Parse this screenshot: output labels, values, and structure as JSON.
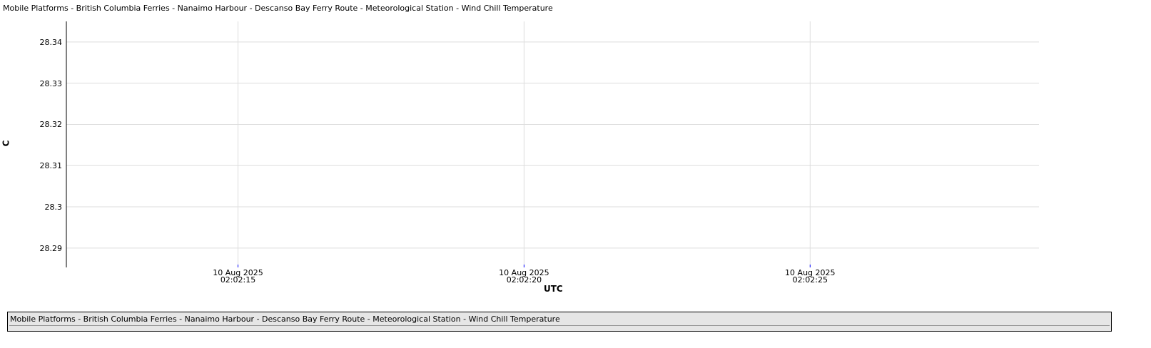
{
  "chart_data": {
    "type": "line",
    "title": "Mobile Platforms - British Columbia Ferries - Nanaimo Harbour - Descanso Bay Ferry Route - Meteorological Station - Wind Chill Temperature",
    "y_label": "C",
    "x_label": "UTC",
    "x": [],
    "series": [
      {
        "name": "Mobile Platforms - British Columbia Ferries - Nanaimo Harbour - Descanso Bay Ferry Route - Meteorological Station - Wind Chill Temperature",
        "values": []
      }
    ],
    "xlim": [
      "2025-08-10T02:02:12",
      "2025-08-10T02:02:29"
    ],
    "xticks": [
      {
        "value": "2025-08-10T02:02:15",
        "label": "10 Aug 2025\n02:02:15"
      },
      {
        "value": "2025-08-10T02:02:20",
        "label": "10 Aug 2025\n02:02:20"
      },
      {
        "value": "2025-08-10T02:02:25",
        "label": "10 Aug 2025\n02:02:25"
      }
    ],
    "ylim": [
      28.2853,
      28.345
    ],
    "yticks": [
      28.29,
      28.3,
      28.31,
      28.32,
      28.33,
      28.34
    ],
    "grid": true
  }
}
